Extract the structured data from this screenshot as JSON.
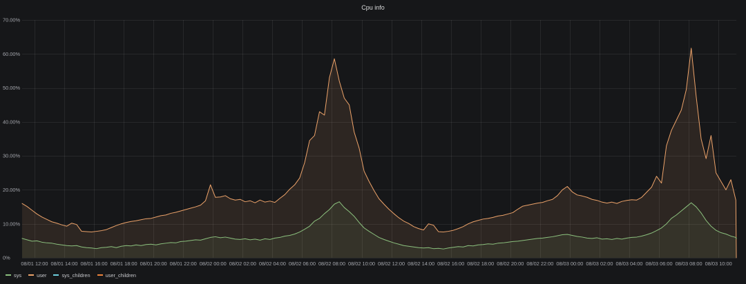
{
  "chart_data": {
    "type": "line",
    "title": "Cpu info",
    "fill": true,
    "grid": true,
    "legend": "bottom-left",
    "ylim": [
      0,
      70
    ],
    "y_ticks": [
      {
        "value": 0,
        "label": "0%"
      },
      {
        "value": 10,
        "label": "10.00%"
      },
      {
        "value": 20,
        "label": "20.00%"
      },
      {
        "value": 30,
        "label": "30.00%"
      },
      {
        "value": 40,
        "label": "40.00%"
      },
      {
        "value": 50,
        "label": "50.00%"
      },
      {
        "value": 60,
        "label": "60.00%"
      },
      {
        "value": 70,
        "label": "70.00%"
      }
    ],
    "x_ticks": [
      "08/01 12:00",
      "08/01 14:00",
      "08/01 16:00",
      "08/01 18:00",
      "08/01 20:00",
      "08/01 22:00",
      "08/02 00:00",
      "08/02 02:00",
      "08/02 04:00",
      "08/02 06:00",
      "08/02 08:00",
      "08/02 10:00",
      "08/02 12:00",
      "08/02 14:00",
      "08/02 16:00",
      "08/02 18:00",
      "08/02 20:00",
      "08/02 22:00",
      "08/03 00:00",
      "08/03 02:00",
      "08/03 04:00",
      "08/03 06:00",
      "08/03 08:00",
      "08/03 10:00"
    ],
    "x": [
      "08/01 11:10",
      "08/01 11:30",
      "08/01 11:50",
      "08/01 12:10",
      "08/01 12:30",
      "08/01 12:50",
      "08/01 13:10",
      "08/01 13:30",
      "08/01 13:50",
      "08/01 14:10",
      "08/01 14:30",
      "08/01 14:50",
      "08/01 15:10",
      "08/01 15:30",
      "08/01 15:50",
      "08/01 16:10",
      "08/01 16:30",
      "08/01 16:50",
      "08/01 17:10",
      "08/01 17:30",
      "08/01 17:50",
      "08/01 18:10",
      "08/01 18:30",
      "08/01 18:50",
      "08/01 19:10",
      "08/01 19:30",
      "08/01 19:50",
      "08/01 20:10",
      "08/01 20:30",
      "08/01 20:50",
      "08/01 21:10",
      "08/01 21:30",
      "08/01 21:50",
      "08/01 22:10",
      "08/01 22:30",
      "08/01 22:50",
      "08/01 23:10",
      "08/01 23:30",
      "08/01 23:50",
      "08/02 00:10",
      "08/02 00:30",
      "08/02 00:50",
      "08/02 01:10",
      "08/02 01:30",
      "08/02 01:50",
      "08/02 02:10",
      "08/02 02:30",
      "08/02 02:50",
      "08/02 03:10",
      "08/02 03:30",
      "08/02 03:50",
      "08/02 04:10",
      "08/02 04:30",
      "08/02 04:50",
      "08/02 05:10",
      "08/02 05:30",
      "08/02 05:50",
      "08/02 06:10",
      "08/02 06:30",
      "08/02 06:50",
      "08/02 07:10",
      "08/02 07:30",
      "08/02 07:50",
      "08/02 08:10",
      "08/02 08:30",
      "08/02 08:50",
      "08/02 09:10",
      "08/02 09:30",
      "08/02 09:50",
      "08/02 10:10",
      "08/02 10:30",
      "08/02 10:50",
      "08/02 11:10",
      "08/02 11:30",
      "08/02 11:50",
      "08/02 12:10",
      "08/02 12:30",
      "08/02 12:50",
      "08/02 13:10",
      "08/02 13:30",
      "08/02 13:50",
      "08/02 14:10",
      "08/02 14:30",
      "08/02 14:50",
      "08/02 15:10",
      "08/02 15:30",
      "08/02 15:50",
      "08/02 16:10",
      "08/02 16:30",
      "08/02 16:50",
      "08/02 17:10",
      "08/02 17:30",
      "08/02 17:50",
      "08/02 18:10",
      "08/02 18:30",
      "08/02 18:50",
      "08/02 19:10",
      "08/02 19:30",
      "08/02 19:50",
      "08/02 20:10",
      "08/02 20:30",
      "08/02 20:50",
      "08/02 21:10",
      "08/02 21:30",
      "08/02 21:50",
      "08/02 22:10",
      "08/02 22:30",
      "08/02 22:50",
      "08/02 23:10",
      "08/02 23:30",
      "08/02 23:50",
      "08/03 00:10",
      "08/03 00:30",
      "08/03 00:50",
      "08/03 01:10",
      "08/03 01:30",
      "08/03 01:50",
      "08/03 02:10",
      "08/03 02:30",
      "08/03 02:50",
      "08/03 03:10",
      "08/03 03:30",
      "08/03 03:50",
      "08/03 04:10",
      "08/03 04:30",
      "08/03 04:50",
      "08/03 05:10",
      "08/03 05:30",
      "08/03 05:50",
      "08/03 06:10",
      "08/03 06:30",
      "08/03 06:50",
      "08/03 07:10",
      "08/03 07:30",
      "08/03 07:50",
      "08/03 08:10",
      "08/03 08:30",
      "08/03 08:50",
      "08/03 09:10",
      "08/03 09:30",
      "08/03 09:50",
      "08/03 10:10",
      "08/03 10:30",
      "08/03 10:50",
      "08/03 11:10",
      "08/03 11:12"
    ],
    "series": [
      {
        "name": "sys",
        "color": "#8CC17E",
        "values": [
          5.7,
          5.3,
          4.9,
          5.0,
          4.6,
          4.4,
          4.3,
          4.0,
          3.8,
          3.6,
          3.5,
          3.6,
          3.2,
          3.0,
          2.9,
          2.7,
          3.0,
          3.1,
          3.3,
          3.0,
          3.4,
          3.6,
          3.5,
          3.8,
          3.6,
          3.9,
          4.0,
          3.8,
          4.1,
          4.3,
          4.5,
          4.4,
          4.8,
          4.9,
          5.1,
          5.3,
          5.2,
          5.6,
          6.0,
          6.2,
          5.9,
          6.1,
          5.8,
          5.5,
          5.4,
          5.6,
          5.3,
          5.5,
          5.2,
          5.6,
          5.4,
          5.8,
          6.0,
          6.4,
          6.6,
          7.0,
          7.6,
          8.4,
          9.3,
          10.8,
          11.6,
          13.0,
          14.2,
          15.8,
          16.5,
          14.8,
          13.6,
          12.2,
          10.4,
          8.8,
          7.8,
          6.9,
          6.0,
          5.4,
          4.9,
          4.4,
          4.0,
          3.6,
          3.4,
          3.2,
          3.0,
          2.9,
          3.0,
          2.7,
          2.8,
          2.6,
          2.9,
          3.1,
          3.3,
          3.2,
          3.6,
          3.5,
          3.8,
          3.9,
          4.1,
          4.0,
          4.3,
          4.4,
          4.6,
          4.8,
          4.9,
          5.1,
          5.3,
          5.5,
          5.7,
          5.8,
          6.0,
          6.2,
          6.5,
          6.8,
          6.9,
          6.6,
          6.3,
          6.1,
          5.8,
          5.7,
          5.9,
          5.5,
          5.6,
          5.4,
          5.7,
          5.5,
          5.8,
          6.0,
          6.1,
          6.4,
          6.8,
          7.3,
          8.0,
          8.8,
          10.0,
          11.6,
          12.6,
          13.8,
          15.0,
          16.2,
          15.0,
          13.2,
          11.0,
          9.3,
          8.1,
          7.4,
          7.0,
          6.4,
          6.0,
          5.6
        ]
      },
      {
        "name": "user",
        "color": "#EDA36A",
        "values": [
          16.0,
          15.1,
          14.0,
          12.9,
          12.0,
          11.3,
          10.6,
          10.2,
          9.7,
          9.3,
          10.2,
          9.8,
          7.8,
          7.7,
          7.6,
          7.8,
          8.0,
          8.3,
          8.9,
          9.5,
          10.0,
          10.4,
          10.7,
          10.9,
          11.2,
          11.5,
          11.6,
          12.0,
          12.4,
          12.6,
          13.1,
          13.4,
          13.8,
          14.2,
          14.6,
          15.0,
          15.5,
          16.8,
          21.5,
          17.8,
          17.9,
          18.3,
          17.4,
          17.0,
          17.2,
          16.5,
          16.8,
          16.2,
          17.0,
          16.4,
          16.7,
          16.3,
          17.5,
          18.6,
          20.2,
          21.5,
          23.5,
          28.0,
          34.5,
          36.0,
          43.0,
          42.0,
          53.0,
          58.6,
          52.0,
          47.0,
          45.0,
          37.0,
          32.3,
          25.5,
          22.5,
          19.8,
          17.4,
          15.8,
          14.3,
          13.0,
          11.8,
          10.8,
          10.1,
          9.2,
          8.6,
          8.2,
          10.0,
          9.6,
          7.7,
          7.6,
          7.8,
          8.1,
          8.6,
          9.2,
          10.0,
          10.6,
          11.0,
          11.4,
          11.6,
          11.9,
          12.3,
          12.5,
          12.9,
          13.3,
          14.3,
          15.2,
          15.5,
          15.8,
          16.1,
          16.3,
          16.8,
          17.2,
          18.3,
          20.0,
          21.0,
          19.4,
          18.5,
          18.2,
          17.8,
          17.2,
          16.9,
          16.4,
          16.1,
          16.4,
          16.0,
          16.6,
          16.9,
          17.1,
          17.0,
          17.8,
          19.3,
          20.8,
          24.0,
          22.0,
          33.0,
          37.5,
          40.5,
          43.5,
          49.5,
          61.7,
          47.5,
          35.0,
          29.2,
          36.0,
          25.0,
          22.5,
          20.0,
          23.0,
          17.0,
          0
        ]
      },
      {
        "name": "sys_children",
        "color": "#6ED0E0"
      },
      {
        "name": "user_children",
        "color": "#EF843C"
      }
    ]
  }
}
